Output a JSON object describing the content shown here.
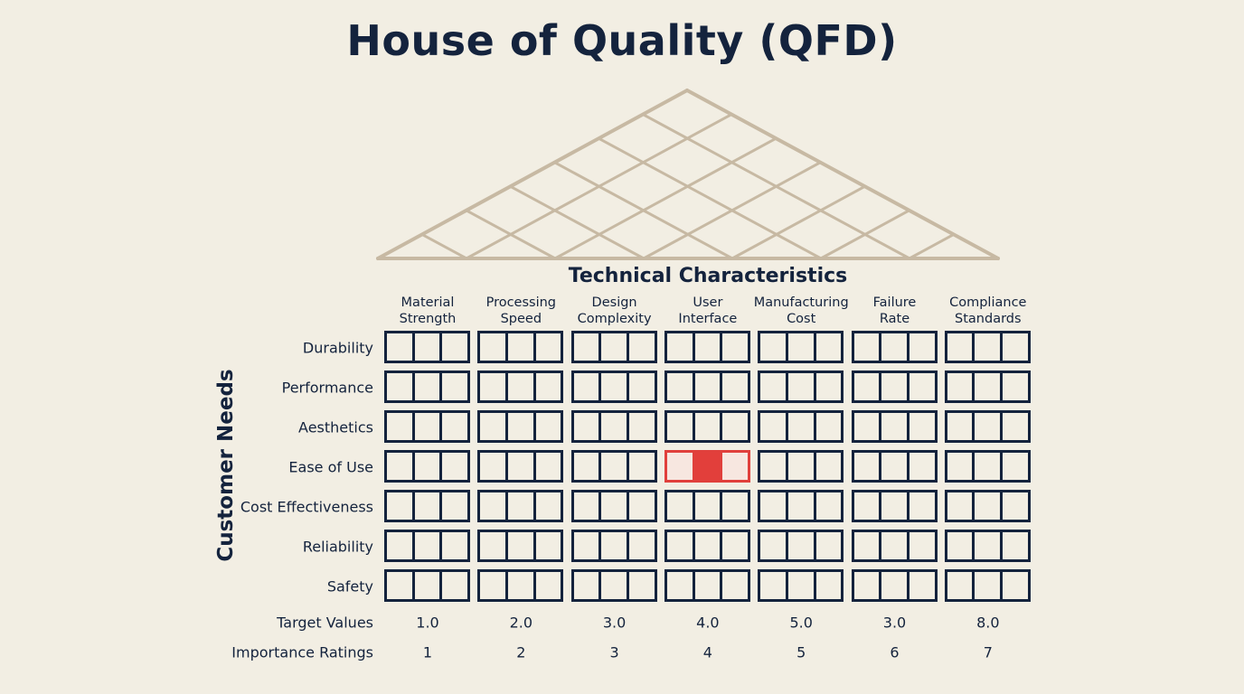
{
  "title": "House of Quality (QFD)",
  "technical_title": "Technical Characteristics",
  "customer_title": "Customer Needs",
  "colors": {
    "background": "#f2eee3",
    "ink": "#14233d",
    "roof": "#c7b9a3",
    "highlight": "#e23f3b"
  },
  "columns": [
    {
      "label": "Material\nStrength"
    },
    {
      "label": "Processing\nSpeed"
    },
    {
      "label": "Design\nComplexity"
    },
    {
      "label": "User\nInterface"
    },
    {
      "label": "Manufacturing\nCost"
    },
    {
      "label": "Failure\nRate"
    },
    {
      "label": "Compliance\nStandards"
    }
  ],
  "rows": [
    {
      "label": "Durability"
    },
    {
      "label": "Performance"
    },
    {
      "label": "Aesthetics"
    },
    {
      "label": "Ease of Use"
    },
    {
      "label": "Cost Effectiveness"
    },
    {
      "label": "Reliability"
    },
    {
      "label": "Safety"
    }
  ],
  "highlighted_cell": {
    "row": "Ease of Use",
    "column": "User\nInterface"
  },
  "target_values": {
    "label": "Target Values",
    "values": [
      "1.0",
      "2.0",
      "3.0",
      "4.0",
      "5.0",
      "3.0",
      "8.0"
    ]
  },
  "importance_ratings": {
    "label": "Importance Ratings",
    "values": [
      "1",
      "2",
      "3",
      "4",
      "5",
      "6",
      "7"
    ]
  }
}
